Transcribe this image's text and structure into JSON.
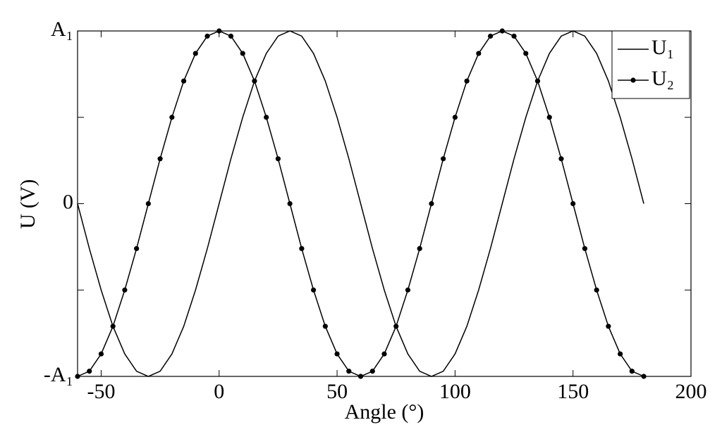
{
  "chart_data": {
    "type": "line",
    "xlabel": "Angle (°)",
    "ylabel": "U (V)",
    "x": [
      -60,
      -55,
      -50,
      -45,
      -40,
      -35,
      -30,
      -25,
      -20,
      -15,
      -10,
      -5,
      0,
      5,
      10,
      15,
      20,
      25,
      30,
      35,
      40,
      45,
      50,
      55,
      60,
      65,
      70,
      75,
      80,
      85,
      90,
      95,
      100,
      105,
      110,
      115,
      120,
      125,
      130,
      135,
      140,
      145,
      150,
      155,
      160,
      165,
      170,
      175,
      180
    ],
    "series": [
      {
        "name": "U₁",
        "color": "#000000",
        "marker": "none",
        "values": [
          0,
          -0.26,
          -0.5,
          -0.71,
          -0.87,
          -0.97,
          -1,
          -0.97,
          -0.87,
          -0.71,
          -0.5,
          -0.26,
          0,
          0.26,
          0.5,
          0.71,
          0.87,
          0.97,
          1,
          0.97,
          0.87,
          0.71,
          0.5,
          0.26,
          0,
          -0.26,
          -0.5,
          -0.71,
          -0.87,
          -0.97,
          -1,
          -0.97,
          -0.87,
          -0.71,
          -0.5,
          -0.26,
          0,
          0.26,
          0.5,
          0.71,
          0.87,
          0.97,
          1,
          0.97,
          0.87,
          0.71,
          0.5,
          0.26,
          0
        ]
      },
      {
        "name": "U₂",
        "color": "#000000",
        "marker": "circle",
        "values": [
          -1,
          -0.97,
          -0.87,
          -0.71,
          -0.5,
          -0.26,
          0,
          0.26,
          0.5,
          0.71,
          0.87,
          0.97,
          1,
          0.97,
          0.87,
          0.71,
          0.5,
          0.26,
          0,
          -0.26,
          -0.5,
          -0.71,
          -0.87,
          -0.97,
          -1,
          -0.97,
          -0.87,
          -0.71,
          -0.5,
          -0.26,
          0,
          0.26,
          0.5,
          0.71,
          0.87,
          0.97,
          1,
          0.97,
          0.87,
          0.71,
          0.5,
          0.26,
          0,
          -0.26,
          -0.5,
          -0.71,
          -0.87,
          -0.97,
          -1
        ]
      }
    ],
    "xlim": [
      -60,
      200
    ],
    "xticks": [
      -50,
      0,
      50,
      100,
      150,
      200
    ],
    "ylim": [
      -1,
      1
    ],
    "yticks": [
      {
        "value": -1,
        "label": "-A₁"
      },
      0,
      {
        "value": 1,
        "label": "A₁"
      }
    ],
    "yminorticks": [
      -0.5,
      0.5
    ],
    "grid": false,
    "legend": "upper right"
  }
}
